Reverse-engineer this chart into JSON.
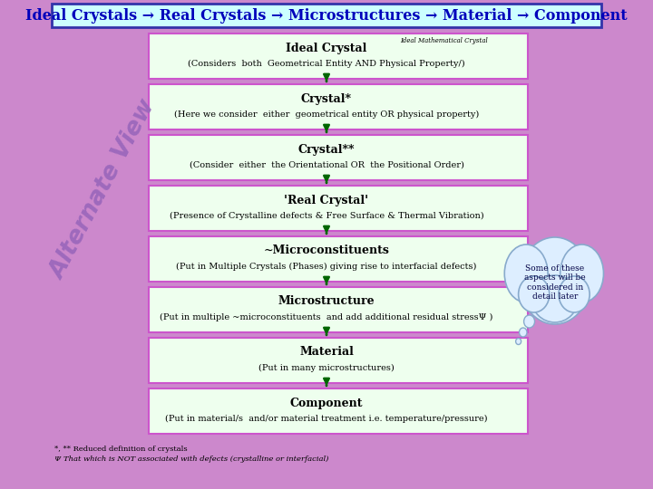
{
  "title": "Ideal Crystals → Real Crystals → Microstructures → Material → Component",
  "title_color": "#0000bb",
  "title_bg": "#ccffff",
  "title_border": "#3333aa",
  "bg_color": "#cc88cc",
  "box_bg": "#eeffee",
  "box_border": "#cc55cc",
  "arrow_color": "#006600",
  "boxes": [
    {
      "title": "Ideal Crystal",
      "title_super": "Ideal Mathematical Crystal",
      "subtitle": "(Considers  both  Geometrical Entity AND Physical Property/)"
    },
    {
      "title": "Crystal*",
      "subtitle": "(Here we consider  either  geometrical entity OR physical property)"
    },
    {
      "title": "Crystal**",
      "subtitle": "(Consider  either  the Orientational OR  the Positional Order)"
    },
    {
      "title": "'Real Crystal'",
      "subtitle": "(Presence of Crystalline defects & Free Surface & Thermal Vibration)"
    },
    {
      "title": "~Microconstituents",
      "subtitle": "(Put in Multiple Crystals (Phases) giving rise to interfacial defects)"
    },
    {
      "title": "Microstructure",
      "subtitle": "(Put in multiple ~microconstituents  and add additional residual stressΨ )"
    },
    {
      "title": "Material",
      "subtitle": "(Put in many microstructures)"
    },
    {
      "title": "Component",
      "subtitle": "(Put in material/s  and/or material treatment i.e. temperature/pressure)"
    }
  ],
  "footnote1": "*, ** Reduced definition of crystals",
  "footnote2": "Ψ That which is NOT associated with defects (crystalline or interfacial)",
  "cloud_text": "Some of these\naspects will be\nconsidered in\ndetail later",
  "watermark": "Alternate View",
  "watermark_color": "#9966bb",
  "cloud_bg": "#ddeeff",
  "cloud_border": "#88aacc"
}
